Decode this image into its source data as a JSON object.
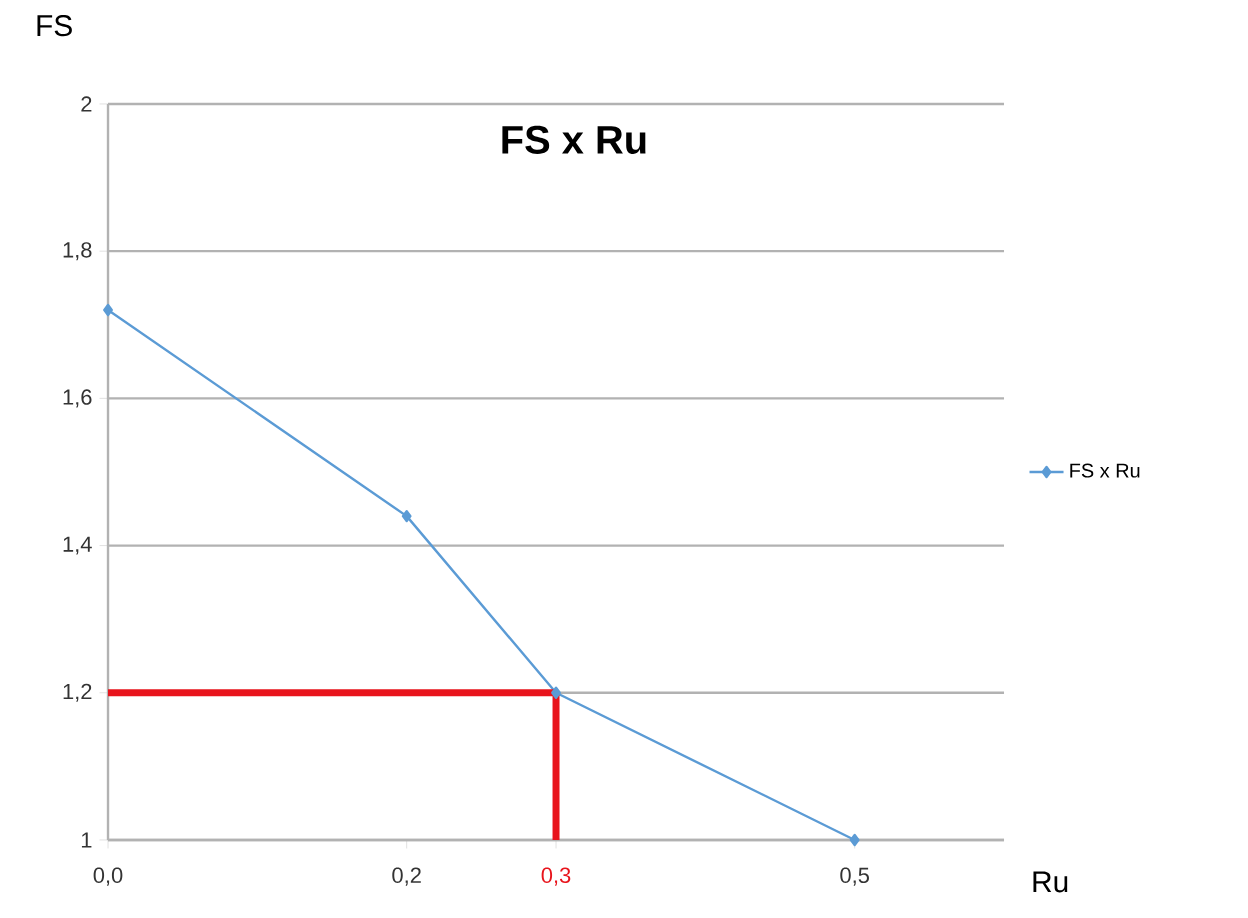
{
  "chart_data": {
    "type": "line",
    "title": "FS x Ru",
    "xlabel": "Ru",
    "ylabel": "FS",
    "series": [
      {
        "name": "FS x Ru",
        "color": "#5b9bd5",
        "x": [
          0,
          0.2,
          0.3,
          0.5
        ],
        "values": [
          1.72,
          1.44,
          1.2,
          1.0
        ],
        "marker": "diamond"
      },
      {
        "color": "#e8141c",
        "x": [
          0,
          0.3,
          0.3
        ],
        "values": [
          1.2,
          1.2,
          1.0
        ],
        "marker": "none"
      }
    ],
    "xlim": [
      0,
      0.6
    ],
    "xticks": [
      {
        "value": 0,
        "label": "0,0"
      },
      {
        "value": 0.2,
        "label": "0,2"
      },
      {
        "value": 0.3,
        "label": "0,3"
      },
      {
        "value": 0.5,
        "label": "0,5"
      }
    ],
    "ylim": [
      1,
      2
    ],
    "yticks": [
      {
        "value": 1,
        "label": "1"
      },
      {
        "value": 1.2,
        "label": "1,2"
      },
      {
        "value": 1.4,
        "label": "1,4"
      },
      {
        "value": 1.6,
        "label": "1,6"
      },
      {
        "value": 1.8,
        "label": "1,8"
      },
      {
        "value": 2,
        "label": "2"
      }
    ],
    "grid": "y",
    "legend": "right"
  }
}
